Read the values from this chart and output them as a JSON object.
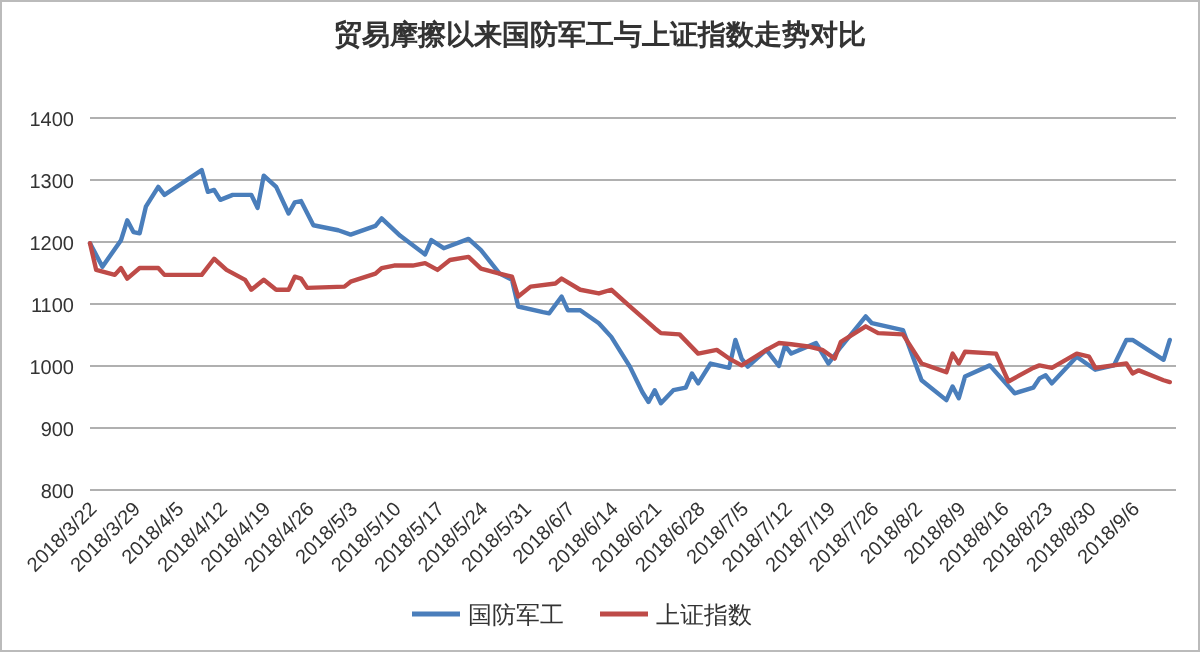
{
  "chart_data": {
    "type": "line",
    "title": "贸易摩擦以来国防军工与上证指数走势对比",
    "xlim": [
      "2018-03-22",
      "2018-09-13"
    ],
    "xticks": [
      {
        "value": "2018-03-22",
        "label": "2018/3/22"
      },
      {
        "value": "2018-03-29",
        "label": "2018/3/29"
      },
      {
        "value": "2018-04-05",
        "label": "2018/4/5"
      },
      {
        "value": "2018-04-12",
        "label": "2018/4/12"
      },
      {
        "value": "2018-04-19",
        "label": "2018/4/19"
      },
      {
        "value": "2018-04-26",
        "label": "2018/4/26"
      },
      {
        "value": "2018-05-03",
        "label": "2018/5/3"
      },
      {
        "value": "2018-05-10",
        "label": "2018/5/10"
      },
      {
        "value": "2018-05-17",
        "label": "2018/5/17"
      },
      {
        "value": "2018-05-24",
        "label": "2018/5/24"
      },
      {
        "value": "2018-05-31",
        "label": "2018/5/31"
      },
      {
        "value": "2018-06-07",
        "label": "2018/6/7"
      },
      {
        "value": "2018-06-14",
        "label": "2018/6/14"
      },
      {
        "value": "2018-06-21",
        "label": "2018/6/21"
      },
      {
        "value": "2018-06-28",
        "label": "2018/6/28"
      },
      {
        "value": "2018-07-05",
        "label": "2018/7/5"
      },
      {
        "value": "2018-07-12",
        "label": "2018/7/12"
      },
      {
        "value": "2018-07-19",
        "label": "2018/7/19"
      },
      {
        "value": "2018-07-26",
        "label": "2018/7/26"
      },
      {
        "value": "2018-08-02",
        "label": "2018/8/2"
      },
      {
        "value": "2018-08-09",
        "label": "2018/8/9"
      },
      {
        "value": "2018-08-16",
        "label": "2018/8/16"
      },
      {
        "value": "2018-08-23",
        "label": "2018/8/23"
      },
      {
        "value": "2018-08-30",
        "label": "2018/8/30"
      },
      {
        "value": "2018-09-06",
        "label": "2018/9/6"
      }
    ],
    "ylim": [
      800,
      1400
    ],
    "yticks": [
      800,
      900,
      1000,
      1100,
      1200,
      1300,
      1400
    ],
    "grid": "y",
    "legend": "bottom",
    "series": [
      {
        "name": "国防军工",
        "color": "#4a7ebb",
        "x": [
          "2018-03-22",
          "2018-03-24",
          "2018-03-27",
          "2018-03-28",
          "2018-03-29",
          "2018-03-30",
          "2018-03-31",
          "2018-04-02",
          "2018-04-03",
          "2018-04-09",
          "2018-04-10",
          "2018-04-11",
          "2018-04-12",
          "2018-04-14",
          "2018-04-17",
          "2018-04-18",
          "2018-04-19",
          "2018-04-21",
          "2018-04-23",
          "2018-04-24",
          "2018-04-25",
          "2018-04-27",
          "2018-05-01",
          "2018-05-03",
          "2018-05-07",
          "2018-05-08",
          "2018-05-11",
          "2018-05-15",
          "2018-05-16",
          "2018-05-18",
          "2018-05-22",
          "2018-05-24",
          "2018-05-27",
          "2018-05-29",
          "2018-05-30",
          "2018-06-03",
          "2018-06-04",
          "2018-06-06",
          "2018-06-07",
          "2018-06-09",
          "2018-06-12",
          "2018-06-14",
          "2018-06-17",
          "2018-06-19",
          "2018-06-20",
          "2018-06-21",
          "2018-06-22",
          "2018-06-24",
          "2018-06-26",
          "2018-06-27",
          "2018-06-28",
          "2018-06-30",
          "2018-07-03",
          "2018-07-04",
          "2018-07-05",
          "2018-07-06",
          "2018-07-09",
          "2018-07-11",
          "2018-07-12",
          "2018-07-13",
          "2018-07-17",
          "2018-07-19",
          "2018-07-21",
          "2018-07-25",
          "2018-07-26",
          "2018-07-31",
          "2018-08-03",
          "2018-08-07",
          "2018-08-08",
          "2018-08-09",
          "2018-08-10",
          "2018-08-14",
          "2018-08-18",
          "2018-08-21",
          "2018-08-22",
          "2018-08-23",
          "2018-08-24",
          "2018-08-28",
          "2018-08-31",
          "2018-09-03",
          "2018-09-05",
          "2018-09-06",
          "2018-09-11",
          "2018-09-12"
        ],
        "values": [
          1198,
          1160,
          1203,
          1235,
          1216,
          1214,
          1257,
          1289,
          1276,
          1316,
          1281,
          1284,
          1268,
          1276,
          1276,
          1255,
          1307,
          1289,
          1246,
          1264,
          1266,
          1227,
          1219,
          1212,
          1226,
          1238,
          1210,
          1180,
          1203,
          1190,
          1205,
          1187,
          1149,
          1139,
          1096,
          1087,
          1085,
          1112,
          1090,
          1090,
          1069,
          1047,
          999,
          958,
          942,
          961,
          940,
          961,
          965,
          988,
          972,
          1004,
          997,
          1042,
          1012,
          999,
          1026,
          1000,
          1033,
          1020,
          1037,
          1004,
          1031,
          1080,
          1069,
          1058,
          977,
          945,
          967,
          948,
          983,
          1001,
          956,
          965,
          980,
          985,
          972,
          1015,
          994,
          1001,
          1042,
          1042,
          1010,
          1042
        ]
      },
      {
        "name": "上证指数",
        "color": "#be4b48",
        "x": [
          "2018-03-22",
          "2018-03-23",
          "2018-03-26",
          "2018-03-27",
          "2018-03-28",
          "2018-03-30",
          "2018-04-02",
          "2018-04-03",
          "2018-04-09",
          "2018-04-11",
          "2018-04-13",
          "2018-04-16",
          "2018-04-17",
          "2018-04-19",
          "2018-04-21",
          "2018-04-23",
          "2018-04-24",
          "2018-04-25",
          "2018-04-26",
          "2018-05-02",
          "2018-05-03",
          "2018-05-07",
          "2018-05-08",
          "2018-05-10",
          "2018-05-13",
          "2018-05-15",
          "2018-05-17",
          "2018-05-19",
          "2018-05-22",
          "2018-05-24",
          "2018-05-27",
          "2018-05-29",
          "2018-05-30",
          "2018-06-01",
          "2018-06-05",
          "2018-06-06",
          "2018-06-09",
          "2018-06-12",
          "2018-06-14",
          "2018-06-17",
          "2018-06-21",
          "2018-06-22",
          "2018-06-25",
          "2018-06-28",
          "2018-07-01",
          "2018-07-03",
          "2018-07-05",
          "2018-07-09",
          "2018-07-11",
          "2018-07-13",
          "2018-07-16",
          "2018-07-18",
          "2018-07-20",
          "2018-07-21",
          "2018-07-25",
          "2018-07-27",
          "2018-07-31",
          "2018-08-03",
          "2018-08-07",
          "2018-08-08",
          "2018-08-09",
          "2018-08-10",
          "2018-08-15",
          "2018-08-17",
          "2018-08-21",
          "2018-08-22",
          "2018-08-24",
          "2018-08-28",
          "2018-08-30",
          "2018-08-31",
          "2018-09-05",
          "2018-09-06",
          "2018-09-07",
          "2018-09-11",
          "2018-09-12"
        ],
        "values": [
          1198,
          1155,
          1147,
          1158,
          1141,
          1158,
          1158,
          1147,
          1147,
          1173,
          1155,
          1139,
          1123,
          1139,
          1123,
          1123,
          1144,
          1141,
          1126,
          1128,
          1136,
          1149,
          1158,
          1162,
          1162,
          1166,
          1155,
          1171,
          1176,
          1157,
          1149,
          1144,
          1112,
          1128,
          1133,
          1141,
          1123,
          1117,
          1123,
          1096,
          1061,
          1053,
          1051,
          1020,
          1026,
          1012,
          1001,
          1026,
          1037,
          1035,
          1031,
          1026,
          1012,
          1039,
          1064,
          1053,
          1051,
          1004,
          990,
          1020,
          1004,
          1023,
          1020,
          975,
          997,
          1001,
          997,
          1020,
          1015,
          997,
          1004,
          988,
          993,
          977,
          974
        ]
      }
    ]
  }
}
